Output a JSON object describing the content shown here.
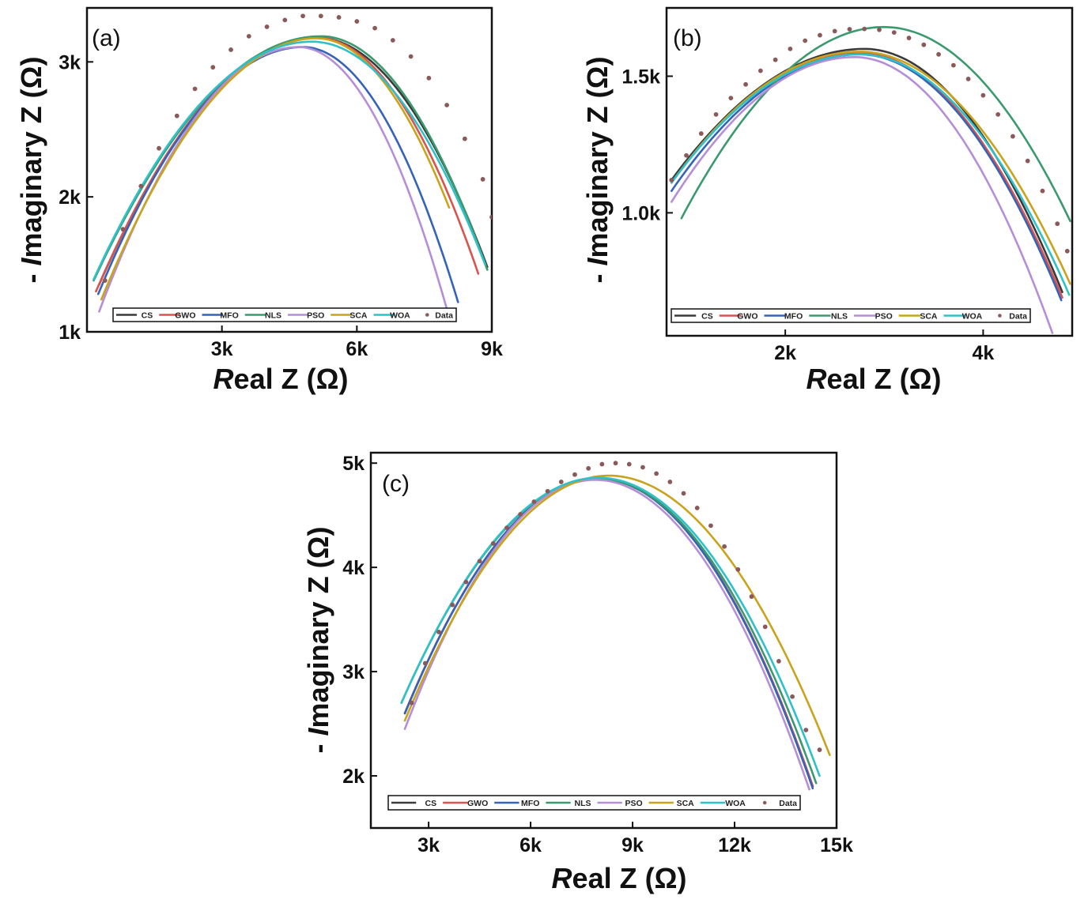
{
  "figure": {
    "panel_labels": [
      "(a)",
      "(b)",
      "(c)"
    ],
    "axis_units": "(Ω)"
  },
  "legend": {
    "entries": [
      {
        "name": "CS",
        "color": "#3a3a3a"
      },
      {
        "name": "GWO",
        "color": "#d9534f"
      },
      {
        "name": "MFO",
        "color": "#3563b8"
      },
      {
        "name": "NLS",
        "color": "#3a9a6e"
      },
      {
        "name": "PSO",
        "color": "#b48fd8"
      },
      {
        "name": "SCA",
        "color": "#c9a31c"
      },
      {
        "name": "WOA",
        "color": "#2fc1c8"
      },
      {
        "name": "Data",
        "color": "#8a5a5a"
      }
    ]
  },
  "chart_data": [
    {
      "panel": "(a)",
      "type": "line",
      "xlabel_italic": "R",
      "xlabel_rest": "eal Z (Ω)",
      "ylabel_prefix": "- ",
      "ylabel_italic": "I",
      "ylabel_rest": "maginary Z (Ω)",
      "xlim": [
        0,
        9000
      ],
      "ylim": [
        1000,
        3400
      ],
      "xticks": [
        3000,
        6000,
        9000
      ],
      "xtick_labels": [
        "3k",
        "6k",
        "9k"
      ],
      "yticks": [
        1000,
        2000,
        3000
      ],
      "ytick_labels": [
        "1k",
        "2k",
        "3k"
      ],
      "series": [
        {
          "name": "CS",
          "peak_x": 5100,
          "peak_y": 3180,
          "left": [
            270,
            1350
          ],
          "right": [
            8900,
            1480
          ]
        },
        {
          "name": "GWO",
          "peak_x": 5100,
          "peak_y": 3180,
          "left": [
            200,
            1300
          ],
          "right": [
            8700,
            1430
          ]
        },
        {
          "name": "MFO",
          "peak_x": 4800,
          "peak_y": 3110,
          "left": [
            250,
            1280
          ],
          "right": [
            8250,
            1220
          ]
        },
        {
          "name": "NLS",
          "peak_x": 5200,
          "peak_y": 3190,
          "left": [
            150,
            1380
          ],
          "right": [
            8900,
            1460
          ]
        },
        {
          "name": "PSO",
          "peak_x": 4700,
          "peak_y": 3110,
          "left": [
            270,
            1150
          ],
          "right": [
            8000,
            1170
          ]
        },
        {
          "name": "SCA",
          "peak_x": 5100,
          "peak_y": 3175,
          "left": [
            320,
            1240
          ],
          "right": [
            8050,
            1920
          ]
        },
        {
          "name": "WOA",
          "peak_x": 5000,
          "peak_y": 3150,
          "left": [
            150,
            1390
          ],
          "right": [
            8850,
            1500
          ]
        },
        {
          "name": "Data",
          "type": "scatter",
          "x": [
            400,
            800,
            1200,
            1600,
            2000,
            2400,
            2800,
            3200,
            3600,
            4000,
            4400,
            4800,
            5200,
            5600,
            6000,
            6400,
            6800,
            7200,
            7600,
            8000,
            8400,
            8800,
            9000
          ],
          "y": [
            1380,
            1760,
            2080,
            2360,
            2600,
            2800,
            2960,
            3090,
            3190,
            3260,
            3310,
            3340,
            3340,
            3330,
            3300,
            3250,
            3160,
            3040,
            2880,
            2680,
            2430,
            2130,
            1850
          ]
        }
      ]
    },
    {
      "panel": "(b)",
      "type": "line",
      "xlabel_italic": "R",
      "xlabel_rest": "eal Z (Ω)",
      "ylabel_prefix": "- ",
      "ylabel_italic": "I",
      "ylabel_rest": "maginary Z (Ω)",
      "xlim": [
        800,
        4900
      ],
      "ylim": [
        550,
        1750
      ],
      "xticks": [
        2000,
        4000
      ],
      "xtick_labels": [
        "2k",
        "4k"
      ],
      "yticks": [
        1000,
        1500
      ],
      "ytick_labels": [
        "1.0k",
        "1.5k"
      ],
      "series": [
        {
          "name": "CS",
          "peak_x": 2800,
          "peak_y": 1600,
          "left": [
            850,
            1120
          ],
          "right": [
            4800,
            710
          ]
        },
        {
          "name": "GWO",
          "peak_x": 2750,
          "peak_y": 1585,
          "left": [
            850,
            1110
          ],
          "right": [
            4800,
            690
          ]
        },
        {
          "name": "MFO",
          "peak_x": 2750,
          "peak_y": 1580,
          "left": [
            850,
            1080
          ],
          "right": [
            4790,
            680
          ]
        },
        {
          "name": "NLS",
          "peak_x": 3000,
          "peak_y": 1680,
          "left": [
            950,
            980
          ],
          "right": [
            4880,
            970
          ]
        },
        {
          "name": "PSO",
          "peak_x": 2700,
          "peak_y": 1570,
          "left": [
            850,
            1040
          ],
          "right": [
            4700,
            560
          ]
        },
        {
          "name": "SCA",
          "peak_x": 2750,
          "peak_y": 1590,
          "left": [
            850,
            1110
          ],
          "right": [
            4880,
            740
          ]
        },
        {
          "name": "WOA",
          "peak_x": 2750,
          "peak_y": 1580,
          "left": [
            850,
            1110
          ],
          "right": [
            4870,
            700
          ]
        },
        {
          "name": "Data",
          "type": "scatter",
          "x": [
            850,
            1000,
            1150,
            1300,
            1450,
            1600,
            1750,
            1900,
            2050,
            2200,
            2350,
            2500,
            2650,
            2800,
            2950,
            3100,
            3250,
            3400,
            3550,
            3700,
            3850,
            4000,
            4150,
            4300,
            4450,
            4600,
            4750,
            4850
          ],
          "y": [
            1120,
            1210,
            1290,
            1360,
            1420,
            1470,
            1520,
            1560,
            1600,
            1630,
            1650,
            1665,
            1672,
            1673,
            1670,
            1660,
            1640,
            1615,
            1580,
            1540,
            1490,
            1430,
            1360,
            1280,
            1190,
            1080,
            960,
            860
          ]
        }
      ]
    },
    {
      "panel": "(c)",
      "type": "line",
      "xlabel_italic": "R",
      "xlabel_rest": "eal Z (Ω)",
      "ylabel_prefix": "- ",
      "ylabel_italic": "I",
      "ylabel_rest": "maginary Z (Ω)",
      "xlim": [
        1300,
        15000
      ],
      "ylim": [
        1500,
        5100
      ],
      "xticks": [
        3000,
        6000,
        9000,
        12000,
        15000
      ],
      "xtick_labels": [
        "3k",
        "6k",
        "9k",
        "12k",
        "15k"
      ],
      "yticks": [
        2000,
        3000,
        4000,
        5000
      ],
      "ytick_labels": [
        "2k",
        "3k",
        "4k",
        "5k"
      ],
      "series": [
        {
          "name": "CS",
          "peak_x": 8000,
          "peak_y": 4850,
          "left": [
            2300,
            2600
          ],
          "right": [
            14300,
            1900
          ]
        },
        {
          "name": "GWO",
          "peak_x": 8000,
          "peak_y": 4850,
          "left": [
            2300,
            2600
          ],
          "right": [
            14300,
            1900
          ]
        },
        {
          "name": "MFO",
          "peak_x": 8000,
          "peak_y": 4850,
          "left": [
            2300,
            2600
          ],
          "right": [
            14300,
            1880
          ]
        },
        {
          "name": "NLS",
          "peak_x": 8000,
          "peak_y": 4850,
          "left": [
            2200,
            2700
          ],
          "right": [
            14400,
            1930
          ]
        },
        {
          "name": "PSO",
          "peak_x": 7900,
          "peak_y": 4840,
          "left": [
            2300,
            2450
          ],
          "right": [
            14200,
            1870
          ]
        },
        {
          "name": "SCA",
          "peak_x": 8300,
          "peak_y": 4880,
          "left": [
            2300,
            2530
          ],
          "right": [
            14800,
            2200
          ]
        },
        {
          "name": "WOA",
          "peak_x": 8000,
          "peak_y": 4860,
          "left": [
            2200,
            2700
          ],
          "right": [
            14500,
            2000
          ]
        },
        {
          "name": "Data",
          "type": "scatter",
          "x": [
            2500,
            2900,
            3300,
            3700,
            4100,
            4500,
            4900,
            5300,
            5700,
            6100,
            6500,
            6900,
            7300,
            7700,
            8100,
            8500,
            8900,
            9300,
            9700,
            10100,
            10500,
            10900,
            11300,
            11700,
            12100,
            12500,
            12900,
            13300,
            13700,
            14100,
            14500
          ],
          "y": [
            2700,
            3080,
            3380,
            3640,
            3860,
            4060,
            4230,
            4380,
            4510,
            4630,
            4730,
            4820,
            4890,
            4950,
            4990,
            5000,
            4990,
            4960,
            4900,
            4820,
            4710,
            4570,
            4400,
            4200,
            3980,
            3720,
            3430,
            3100,
            2760,
            2440,
            2250
          ]
        }
      ]
    }
  ]
}
